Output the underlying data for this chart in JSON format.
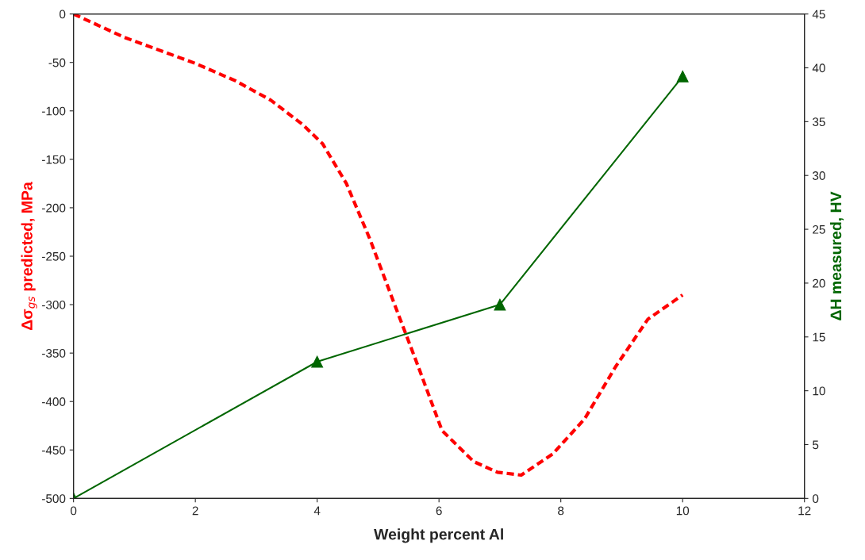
{
  "chart_data": {
    "type": "line",
    "xlabel": "Weight percent Al",
    "ylabel": "Δσ$_{gs}$ predicted, MPa",
    "y2label": "ΔH measured, HV",
    "xlim": [
      0,
      12
    ],
    "xticks": [
      0,
      2,
      4,
      6,
      8,
      10,
      12
    ],
    "ylim": [
      -500,
      0
    ],
    "yticks": [
      -500,
      -450,
      -400,
      -350,
      -300,
      -250,
      -200,
      -150,
      -100,
      -50,
      0
    ],
    "y2lim": [
      0,
      45
    ],
    "y2ticks": [
      0,
      5,
      10,
      15,
      20,
      25,
      30,
      35,
      40,
      45
    ],
    "grid": false,
    "legend": false,
    "series": [
      {
        "color": "#ff0000",
        "line_style": "dashed",
        "marker": "none",
        "x": [
          0,
          0.83,
          2.0,
          2.66,
          3.24,
          3.76,
          4.09,
          4.48,
          4.87,
          5.26,
          5.66,
          6.05,
          6.57,
          6.96,
          7.35,
          7.87,
          8.39,
          8.9,
          9.43,
          10.0
        ],
        "values": [
          0,
          -24,
          -51,
          -69,
          -89,
          -114,
          -134,
          -175,
          -233,
          -298,
          -364,
          -430,
          -462,
          -473,
          -476,
          -454,
          -418,
          -364,
          -315,
          -290
        ]
      },
      {
        "color": "#006600",
        "line_style": "solid",
        "marker": "triangle",
        "axis": "y2",
        "x": [
          0,
          4,
          7,
          10
        ],
        "values": [
          0,
          12.7,
          18.0,
          39.2
        ]
      }
    ]
  }
}
